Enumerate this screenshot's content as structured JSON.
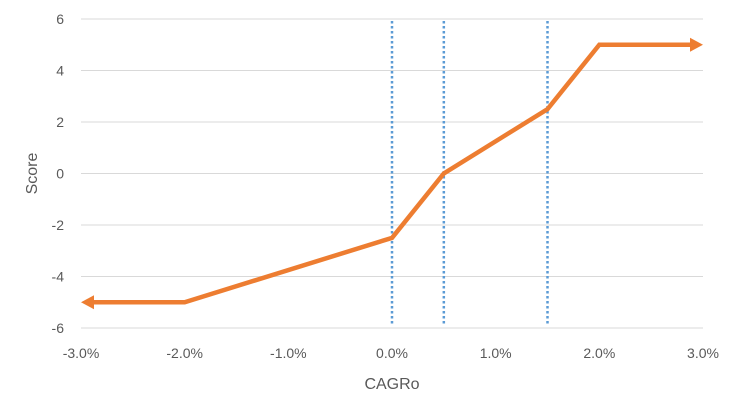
{
  "chart_data": {
    "type": "line",
    "title": "",
    "xlabel": "CAGRo",
    "ylabel": "Score",
    "xlim": [
      -3.0,
      3.0
    ],
    "ylim": [
      -6,
      6
    ],
    "x_ticks": [
      -3.0,
      -2.0,
      -1.0,
      0.0,
      1.0,
      2.0,
      3.0
    ],
    "x_tick_labels": [
      "-3.0%",
      "-2.0%",
      "-1.0%",
      "0.0%",
      "1.0%",
      "2.0%",
      "3.0%"
    ],
    "y_ticks": [
      -6,
      -4,
      -2,
      0,
      2,
      4,
      6
    ],
    "y_tick_labels": [
      "-6",
      "-4",
      "-2",
      "0",
      "2",
      "4",
      "6"
    ],
    "grid": "horizontal",
    "series": [
      {
        "color": "#ED7D31",
        "points": [
          {
            "x": -3.0,
            "y": -5.0
          },
          {
            "x": -2.0,
            "y": -5.0
          },
          {
            "x": 0.0,
            "y": -2.5
          },
          {
            "x": 0.5,
            "y": 0.0
          },
          {
            "x": 1.5,
            "y": 2.5
          },
          {
            "x": 2.0,
            "y": 5.0
          },
          {
            "x": 3.0,
            "y": 5.0
          }
        ],
        "arrow_ends": "both"
      }
    ],
    "reference_lines": [
      {
        "x": 0.0,
        "style": "dotted",
        "color": "#5B9BD5"
      },
      {
        "x": 0.5,
        "style": "dotted",
        "color": "#5B9BD5"
      },
      {
        "x": 1.5,
        "style": "dotted",
        "color": "#5B9BD5"
      }
    ],
    "gridline_color": "#D9D9D9",
    "text_color": "#595959"
  }
}
